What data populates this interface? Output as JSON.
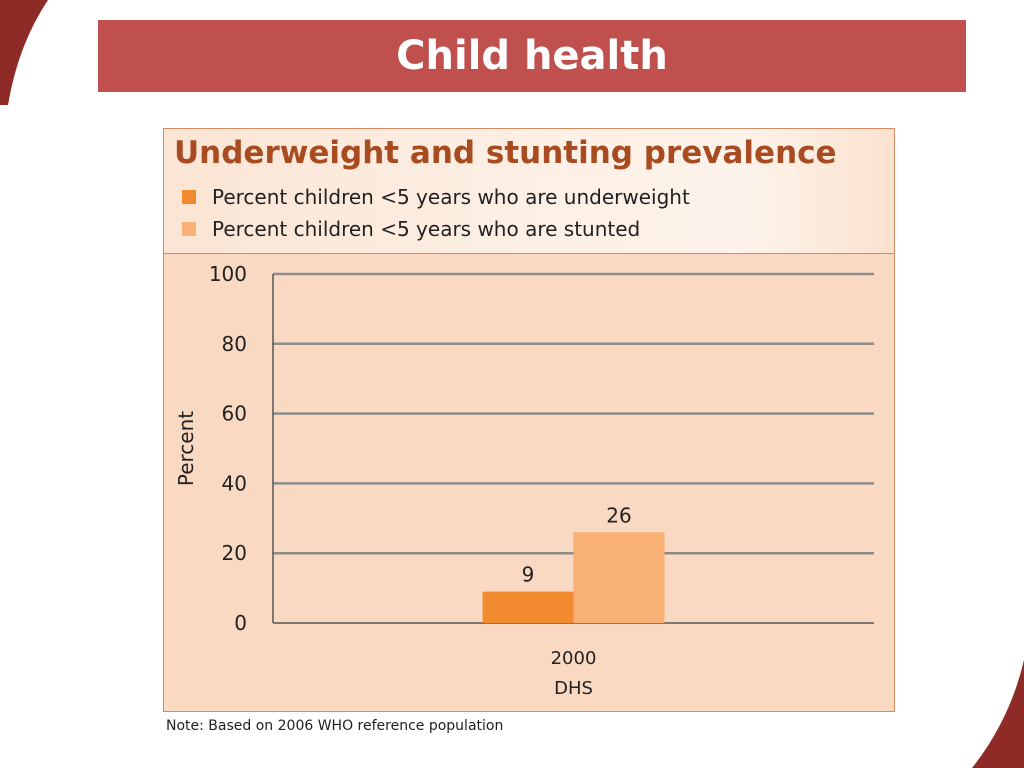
{
  "slide": {
    "title": "Child health",
    "note": "Note: Based on 2006 WHO reference population"
  },
  "colors": {
    "banner": "#c0504d",
    "underweight": "#f28a2f",
    "stunted": "#f9b074",
    "gridline": "#8c8c8c"
  },
  "chart_data": {
    "type": "bar",
    "title": "Underweight and stunting prevalence",
    "ylabel": "Percent",
    "xlabel": "",
    "ylim": [
      0,
      100
    ],
    "yticks": [
      0,
      20,
      40,
      60,
      80,
      100
    ],
    "grid": true,
    "legend_placement": "top-left",
    "categories": [
      [
        "2000",
        "DHS"
      ]
    ],
    "series": [
      {
        "name": "Percent children <5 years who are underweight",
        "values": [
          9
        ],
        "labels": [
          "9"
        ],
        "color": "#f28a2f"
      },
      {
        "name": "Percent children <5 years who are stunted",
        "values": [
          26
        ],
        "labels": [
          "26"
        ],
        "color": "#f9b074"
      }
    ]
  }
}
